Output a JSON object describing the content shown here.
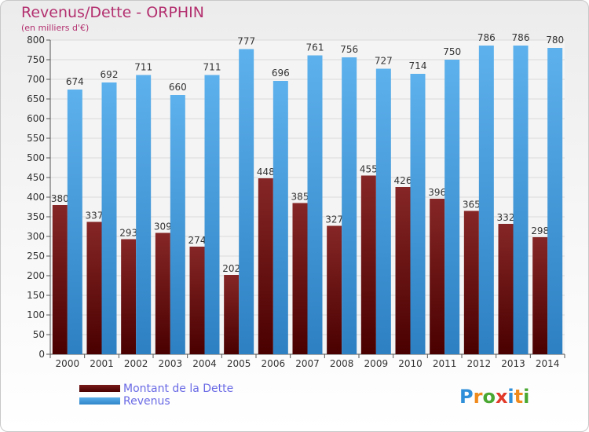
{
  "header": {
    "title": "Revenus/Dette - ORPHIN",
    "subtitle": "(en milliers d'€)"
  },
  "legend": {
    "debt_label": "Montant de la Dette",
    "revenue_label": "Revenus"
  },
  "logo": {
    "text": "Proxiti"
  },
  "colors": {
    "title": "#b3306f",
    "debt": "#7a1b1b",
    "revenue": "#5aaeea",
    "legend_text": "#6a6ae6"
  },
  "chart_data": {
    "type": "bar",
    "title": "Revenus/Dette - ORPHIN",
    "ylabel": "(en milliers d'€)",
    "ylim": [
      0,
      800
    ],
    "yticks": [
      0,
      50,
      100,
      150,
      200,
      250,
      300,
      350,
      400,
      450,
      500,
      550,
      600,
      650,
      700,
      750,
      800
    ],
    "grid": true,
    "legend_position": "bottom-left",
    "categories": [
      "2000",
      "2001",
      "2002",
      "2003",
      "2004",
      "2005",
      "2006",
      "2007",
      "2008",
      "2009",
      "2010",
      "2011",
      "2012",
      "2013",
      "2014"
    ],
    "series": [
      {
        "name": "Montant de la Dette",
        "values": [
          380,
          337,
          293,
          309,
          274,
          202,
          448,
          385,
          327,
          455,
          426,
          396,
          365,
          332,
          298
        ]
      },
      {
        "name": "Revenus",
        "values": [
          674,
          692,
          711,
          660,
          711,
          777,
          696,
          761,
          756,
          727,
          714,
          750,
          786,
          786,
          780
        ]
      }
    ]
  }
}
